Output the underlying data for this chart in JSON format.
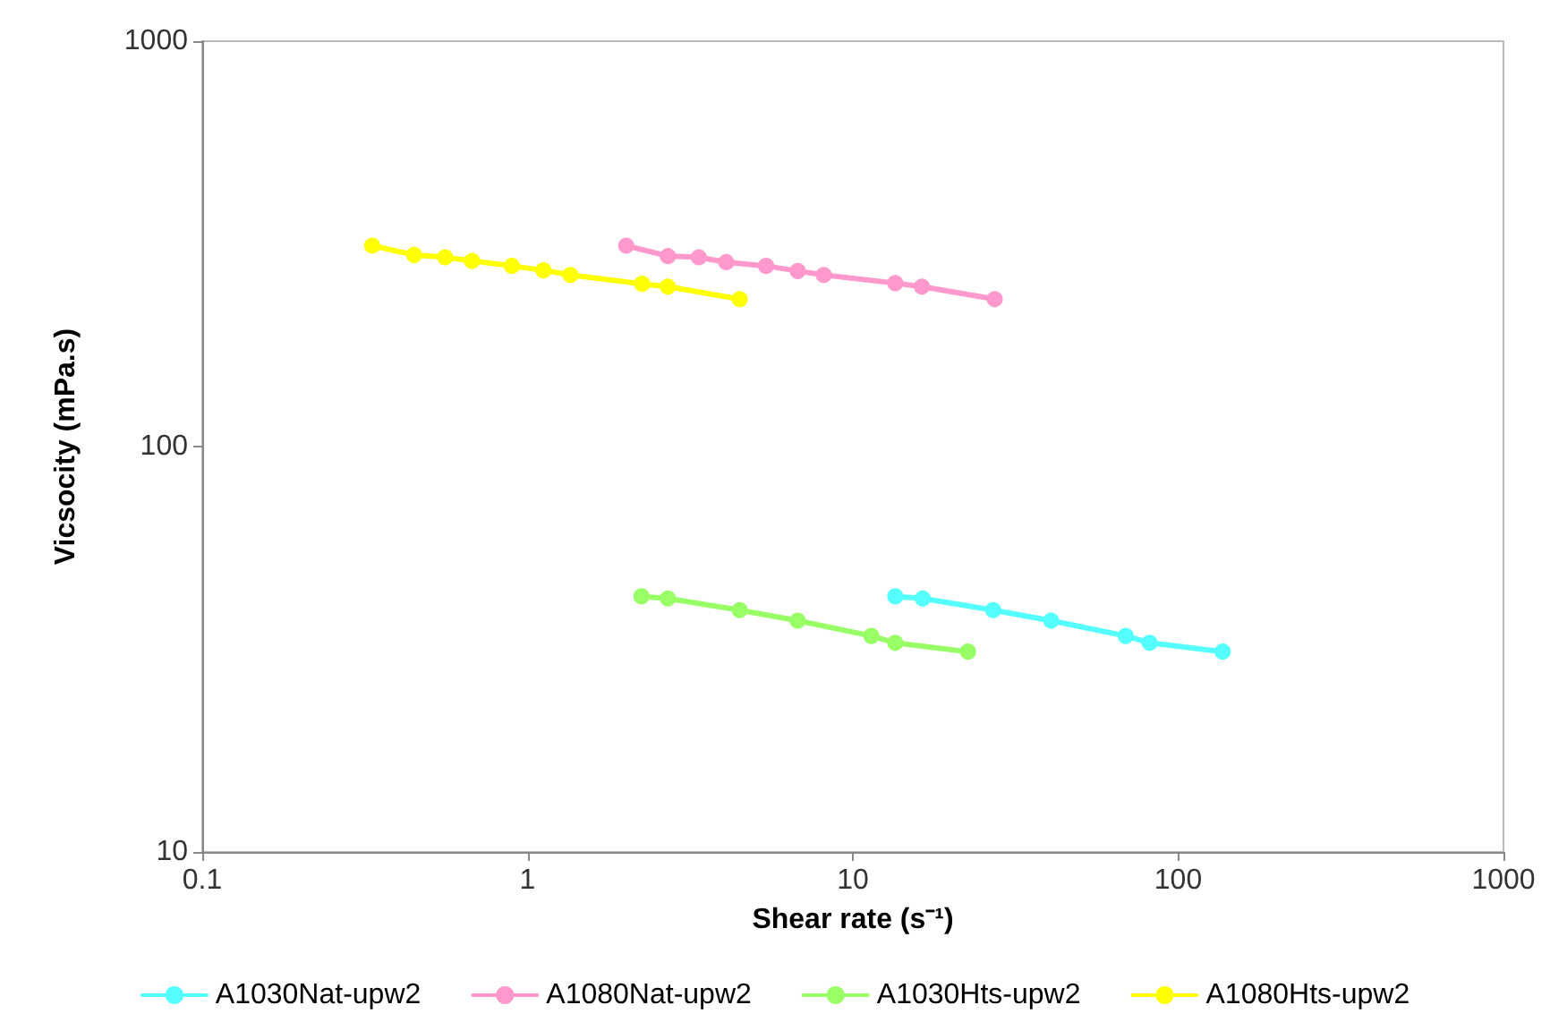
{
  "chart_data": {
    "type": "line",
    "xlabel": "Shear rate (s⁻¹)",
    "ylabel": "Vicsocity (mPa.s)",
    "log": "xy",
    "xlim": [
      0.1,
      1000
    ],
    "xticks": [
      0.1,
      1,
      10,
      100,
      1000
    ],
    "ylim": [
      10,
      1000
    ],
    "yticks": [
      10,
      100,
      1000
    ],
    "grid": false,
    "legend": "bottom",
    "marker": "circle",
    "line_style": "solid",
    "series": [
      {
        "name": "A1030Nat-upw2",
        "color": "#55ffff",
        "x": [
          13.5,
          16.4,
          27,
          40.7,
          69,
          81.7,
          137
        ],
        "values": [
          42.7,
          42.2,
          39.5,
          37.2,
          34.1,
          32.8,
          31.2
        ]
      },
      {
        "name": "A1080Nat-upw2",
        "color": "#ff99cc",
        "x": [
          2.01,
          2.7,
          3.36,
          4.08,
          5.41,
          6.77,
          8.14,
          13.5,
          16.3,
          27.3
        ],
        "values": [
          313,
          295,
          293,
          285,
          279,
          271,
          265,
          253,
          248,
          231
        ]
      },
      {
        "name": "A1030Hts-upw2",
        "color": "#99ff66",
        "x": [
          2.24,
          2.7,
          4.49,
          6.77,
          11.4,
          13.5,
          22.6
        ],
        "values": [
          42.7,
          42.2,
          39.5,
          37.2,
          34.1,
          32.8,
          31.2
        ]
      },
      {
        "name": "A1080Hts-upw2",
        "color": "#ffff00",
        "x": [
          0.333,
          0.448,
          0.558,
          0.675,
          0.895,
          1.12,
          1.355,
          2.25,
          2.7,
          4.49
        ],
        "values": [
          313,
          297,
          293,
          287,
          279,
          272,
          265,
          252,
          248,
          231
        ]
      }
    ]
  }
}
